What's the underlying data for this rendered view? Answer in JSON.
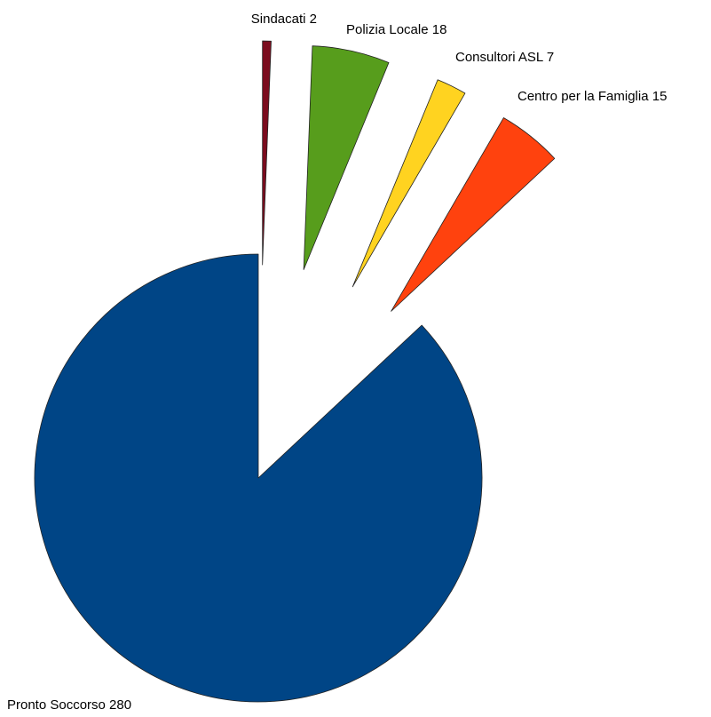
{
  "chart_data": {
    "type": "pie",
    "slices": [
      {
        "label": "Sindacati",
        "value": 2,
        "color": "#7B0C1E",
        "exploded": true
      },
      {
        "label": "Polizia Locale",
        "value": 18,
        "color": "#579D1C",
        "exploded": true
      },
      {
        "label": "Consultori ASL",
        "value": 7,
        "color": "#FFD320",
        "exploded": true
      },
      {
        "label": "Centro per la Famiglia",
        "value": 15,
        "color": "#FF420E",
        "exploded": true
      },
      {
        "label": "Pronto Soccorso",
        "value": 280,
        "color": "#004586",
        "exploded": false
      }
    ],
    "data_labels": [
      "Sindacati 2",
      "Polizia Locale 18",
      "Consultori ASL 7",
      "Centro per la Famiglia 15",
      "Pronto Soccorso 280"
    ],
    "start_angle_deg": 0,
    "direction": "clockwise",
    "legend": "none"
  }
}
